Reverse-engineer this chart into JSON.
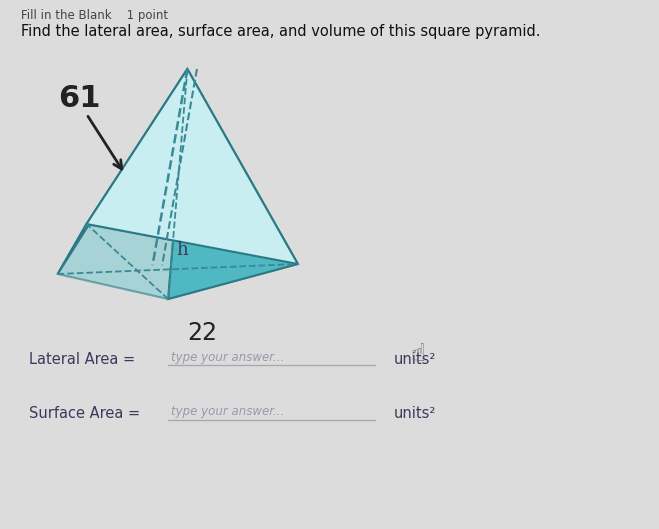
{
  "title_bar": "Fill in the Blank    1 point",
  "question": "Find the lateral area, surface area, and volume of this square pyramid.",
  "dim1_label": "61",
  "dim2_label": "22",
  "slant_label": "h",
  "lateral_area_label": "Lateral Area = ",
  "lateral_area_placeholder": "type your answer...",
  "lateral_area_units": "units²",
  "surface_area_label": "Surface Area = ",
  "surface_area_placeholder": "type your answer...",
  "surface_area_units": "units²",
  "bg_color": "#dcdcdc",
  "face_left_color": "#a8dfe4",
  "face_front_color": "#c8eef2",
  "face_right_color": "#4fb8c2",
  "face_back_color": "#85cdd4",
  "edge_color": "#2a7a85",
  "dashed_color": "#3a8a95",
  "title_color": "#444444",
  "question_color": "#111111",
  "label_color": "#3a3a5c",
  "placeholder_color": "#9999aa",
  "units_color": "#3a3a5c",
  "arrow_color": "#222222",
  "cursor_color": "#666666"
}
